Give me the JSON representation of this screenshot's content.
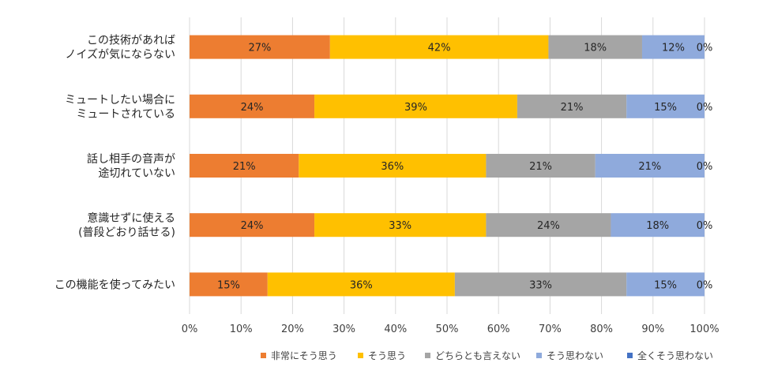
{
  "chart_data": {
    "type": "bar",
    "orientation": "horizontal",
    "stacked": "percent",
    "title": "",
    "xlabel": "",
    "ylabel": "",
    "xlim": [
      0,
      100
    ],
    "x_ticks": [
      "0%",
      "10%",
      "20%",
      "30%",
      "40%",
      "50%",
      "60%",
      "70%",
      "80%",
      "90%",
      "100%"
    ],
    "grid": true,
    "legend_position": "bottom",
    "categories": [
      [
        "この技術があれば",
        "ノイズが気にならない"
      ],
      [
        "ミュートしたい場合に",
        "ミュートされている"
      ],
      [
        "話し相手の音声が",
        "途切れていない"
      ],
      [
        "意識せずに使える",
        "(普段どおり話せる)"
      ],
      [
        "この機能を使ってみたい"
      ]
    ],
    "series": [
      {
        "name": "非常にそう思う",
        "color": "#ED7D31",
        "values": [
          27,
          24,
          21,
          24,
          15
        ],
        "labels": [
          "27%",
          "24%",
          "21%",
          "24%",
          "15%"
        ]
      },
      {
        "name": "そう思う",
        "color": "#FFC000",
        "values": [
          42,
          39,
          36,
          33,
          36
        ],
        "labels": [
          "42%",
          "39%",
          "36%",
          "33%",
          "36%"
        ]
      },
      {
        "name": "どちらとも言えない",
        "color": "#A5A5A5",
        "values": [
          18,
          21,
          21,
          24,
          33
        ],
        "labels": [
          "18%",
          "21%",
          "21%",
          "24%",
          "33%"
        ]
      },
      {
        "name": "そう思わない",
        "color": "#8FAADC",
        "values": [
          12,
          15,
          21,
          18,
          15
        ],
        "labels": [
          "12%",
          "15%",
          "21%",
          "18%",
          "15%"
        ]
      },
      {
        "name": "全くそう思わない",
        "color": "#4472C4",
        "values": [
          0,
          0,
          0,
          0,
          0
        ],
        "labels": [
          "0%",
          "0%",
          "0%",
          "0%",
          "0%"
        ]
      }
    ]
  }
}
